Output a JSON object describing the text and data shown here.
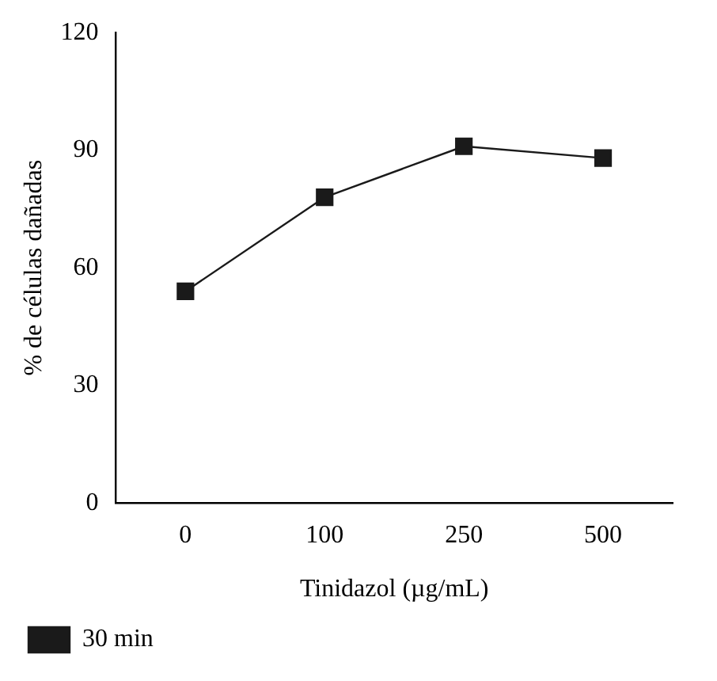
{
  "chart_data": {
    "type": "line",
    "xlabel": "Tinidazol (µg/mL)",
    "ylabel": "% de células dañadas",
    "categories": [
      "0",
      "100",
      "250",
      "500"
    ],
    "series": [
      {
        "name": "30 min",
        "color": "#1a1a1a",
        "values": [
          54,
          78,
          91,
          88
        ]
      }
    ],
    "ylim": [
      0,
      120
    ],
    "yticks": [
      0,
      30,
      60,
      90,
      120
    ],
    "grid": false,
    "legend": "bottom left",
    "marker": "square",
    "line_style": "solid"
  }
}
